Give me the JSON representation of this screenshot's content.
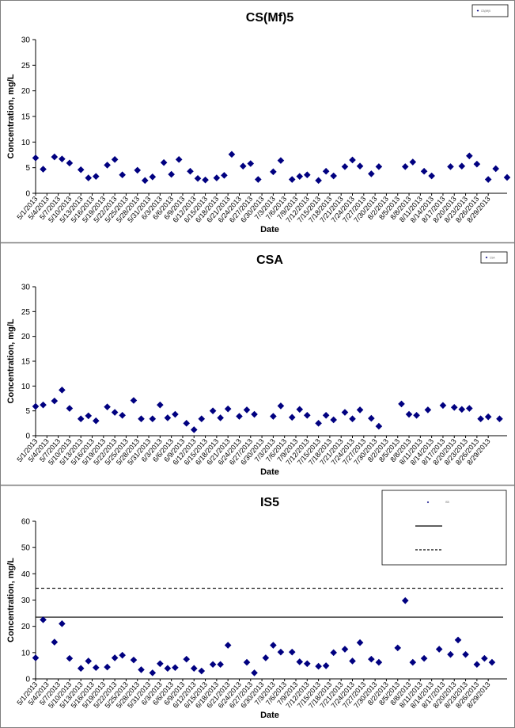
{
  "chart_data": [
    {
      "type": "scatter",
      "title": "CS(Mf)5",
      "xlabel": "Date",
      "ylabel": "Concentration, mg/L",
      "ylim": [
        0,
        30
      ],
      "yticks": [
        0,
        5,
        10,
        15,
        20,
        25,
        30
      ],
      "legend": {
        "position": "top-right",
        "entries": [
          "CS(Mf)5"
        ]
      },
      "x_tick_labels": [
        "5/1/2013",
        "5/4/2013",
        "5/7/2013",
        "5/10/2013",
        "5/13/2013",
        "5/16/2013",
        "5/19/2013",
        "5/22/2013",
        "5/25/2013",
        "5/28/2013",
        "5/31/2013",
        "6/3/2013",
        "6/6/2013",
        "6/9/2013",
        "6/12/2013",
        "6/15/2013",
        "6/18/2013",
        "6/21/2013",
        "6/24/2013",
        "6/27/2013",
        "6/30/2013",
        "7/3/2013",
        "7/6/2013",
        "7/9/2013",
        "7/12/2013",
        "7/15/2013",
        "7/18/2013",
        "7/21/2013",
        "7/24/2013",
        "7/27/2013",
        "7/30/2013",
        "8/2/2013",
        "8/5/2013",
        "8/8/2013",
        "8/11/2013",
        "8/14/2013",
        "8/17/2013",
        "8/20/2013",
        "8/23/2013",
        "8/26/2013",
        "8/29/2013"
      ],
      "series": [
        {
          "name": "CS(Mf)5",
          "points": [
            [
              "5/1/2013",
              6.9
            ],
            [
              "5/3/2013",
              4.7
            ],
            [
              "5/6/2013",
              7.1
            ],
            [
              "5/8/2013",
              6.7
            ],
            [
              "5/10/2013",
              5.9
            ],
            [
              "5/13/2013",
              4.6
            ],
            [
              "5/15/2013",
              3.0
            ],
            [
              "5/17/2013",
              3.3
            ],
            [
              "5/20/2013",
              5.5
            ],
            [
              "5/22/2013",
              6.6
            ],
            [
              "5/24/2013",
              3.6
            ],
            [
              "5/28/2013",
              4.5
            ],
            [
              "5/30/2013",
              2.5
            ],
            [
              "6/1/2013",
              3.2
            ],
            [
              "6/4/2013",
              6.0
            ],
            [
              "6/6/2013",
              3.7
            ],
            [
              "6/8/2013",
              6.6
            ],
            [
              "6/11/2013",
              4.3
            ],
            [
              "6/13/2013",
              2.9
            ],
            [
              "6/15/2013",
              2.6
            ],
            [
              "6/18/2013",
              3.0
            ],
            [
              "6/20/2013",
              3.5
            ],
            [
              "6/22/2013",
              7.6
            ],
            [
              "6/25/2013",
              5.3
            ],
            [
              "6/27/2013",
              5.8
            ],
            [
              "6/29/2013",
              2.7
            ],
            [
              "7/3/2013",
              4.2
            ],
            [
              "7/5/2013",
              6.4
            ],
            [
              "7/8/2013",
              2.7
            ],
            [
              "7/10/2013",
              3.3
            ],
            [
              "7/12/2013",
              3.6
            ],
            [
              "7/15/2013",
              2.5
            ],
            [
              "7/17/2013",
              4.3
            ],
            [
              "7/19/2013",
              3.4
            ],
            [
              "7/22/2013",
              5.2
            ],
            [
              "7/24/2013",
              6.5
            ],
            [
              "7/26/2013",
              5.3
            ],
            [
              "7/29/2013",
              3.8
            ],
            [
              "7/31/2013",
              5.2
            ],
            [
              "8/7/2013",
              5.2
            ],
            [
              "8/9/2013",
              6.1
            ],
            [
              "8/12/2013",
              4.3
            ],
            [
              "8/14/2013",
              3.4
            ],
            [
              "8/19/2013",
              5.2
            ],
            [
              "8/22/2013",
              5.3
            ],
            [
              "8/24/2013",
              7.3
            ],
            [
              "8/26/2013",
              5.7
            ],
            [
              "8/29/2013",
              2.7
            ],
            [
              "8/31/2013",
              4.8
            ],
            [
              "9/3/2013",
              3.1
            ]
          ]
        }
      ]
    },
    {
      "type": "scatter",
      "title": "CSA",
      "xlabel": "Date",
      "ylabel": "Concentration, mg/L",
      "ylim": [
        0,
        30
      ],
      "yticks": [
        0,
        5,
        10,
        15,
        20,
        25,
        30
      ],
      "legend": {
        "position": "top-right",
        "entries": [
          "CSA"
        ]
      },
      "x_tick_labels": [
        "5/1/2013",
        "5/4/2013",
        "5/7/2013",
        "5/10/2013",
        "5/13/2013",
        "5/16/2013",
        "5/19/2013",
        "5/22/2013",
        "5/25/2013",
        "5/28/2013",
        "5/31/2013",
        "6/3/2013",
        "6/6/2013",
        "6/9/2013",
        "6/12/2013",
        "6/15/2013",
        "6/18/2013",
        "6/21/2013",
        "6/24/2013",
        "6/27/2013",
        "6/30/2013",
        "7/3/2013",
        "7/6/2013",
        "7/9/2013",
        "7/12/2013",
        "7/15/2013",
        "7/18/2013",
        "7/21/2013",
        "7/24/2013",
        "7/27/2013",
        "7/30/2013",
        "8/2/2013",
        "8/5/2013",
        "8/8/2013",
        "8/11/2013",
        "8/14/2013",
        "8/17/2013",
        "8/20/2013",
        "8/23/2013",
        "8/26/2013",
        "8/29/2013"
      ],
      "series": [
        {
          "name": "CSA",
          "points": [
            [
              "5/1/2013",
              5.9
            ],
            [
              "5/3/2013",
              6.2
            ],
            [
              "5/6/2013",
              7.0
            ],
            [
              "5/8/2013",
              9.2
            ],
            [
              "5/10/2013",
              5.5
            ],
            [
              "5/13/2013",
              3.4
            ],
            [
              "5/15/2013",
              4.0
            ],
            [
              "5/17/2013",
              3.0
            ],
            [
              "5/20/2013",
              5.8
            ],
            [
              "5/22/2013",
              4.7
            ],
            [
              "5/24/2013",
              4.1
            ],
            [
              "5/27/2013",
              7.1
            ],
            [
              "5/29/2013",
              3.4
            ],
            [
              "6/1/2013",
              3.4
            ],
            [
              "6/3/2013",
              6.2
            ],
            [
              "6/5/2013",
              3.6
            ],
            [
              "6/7/2013",
              4.3
            ],
            [
              "6/10/2013",
              2.5
            ],
            [
              "6/12/2013",
              1.2
            ],
            [
              "6/14/2013",
              3.4
            ],
            [
              "6/17/2013",
              5.0
            ],
            [
              "6/19/2013",
              3.6
            ],
            [
              "6/21/2013",
              5.4
            ],
            [
              "6/24/2013",
              3.9
            ],
            [
              "6/26/2013",
              5.2
            ],
            [
              "6/28/2013",
              4.3
            ],
            [
              "7/3/2013",
              3.9
            ],
            [
              "7/5/2013",
              6.0
            ],
            [
              "7/8/2013",
              3.7
            ],
            [
              "7/10/2013",
              5.3
            ],
            [
              "7/12/2013",
              4.1
            ],
            [
              "7/15/2013",
              2.5
            ],
            [
              "7/17/2013",
              4.1
            ],
            [
              "7/19/2013",
              3.2
            ],
            [
              "7/22/2013",
              4.7
            ],
            [
              "7/24/2013",
              3.4
            ],
            [
              "7/26/2013",
              5.2
            ],
            [
              "7/29/2013",
              3.5
            ],
            [
              "7/31/2013",
              1.9
            ],
            [
              "8/6/2013",
              6.4
            ],
            [
              "8/8/2013",
              4.3
            ],
            [
              "8/10/2013",
              4.1
            ],
            [
              "8/13/2013",
              5.2
            ],
            [
              "8/17/2013",
              6.1
            ],
            [
              "8/20/2013",
              5.7
            ],
            [
              "8/22/2013",
              5.3
            ],
            [
              "8/24/2013",
              5.5
            ],
            [
              "8/27/2013",
              3.4
            ],
            [
              "8/29/2013",
              3.8
            ],
            [
              "9/1/2013",
              3.4
            ]
          ]
        }
      ]
    },
    {
      "type": "scatter",
      "title": "IS5",
      "xlabel": "Date",
      "ylabel": "Concentration, mg/L",
      "ylim": [
        0,
        60
      ],
      "yticks": [
        0,
        10,
        20,
        30,
        40,
        50,
        60
      ],
      "legend": {
        "position": "top-right",
        "entries": [
          "IS5",
          "",
          ""
        ]
      },
      "reference_lines": [
        {
          "style": "solid",
          "value": 23.5
        },
        {
          "style": "dashed",
          "value": 34.5
        }
      ],
      "x_tick_labels": [
        "5/1/2013",
        "5/4/2013",
        "5/7/2013",
        "5/10/2013",
        "5/13/2013",
        "5/16/2013",
        "5/19/2013",
        "5/22/2013",
        "5/25/2013",
        "5/28/2013",
        "5/31/2013",
        "6/3/2013",
        "6/6/2013",
        "6/9/2013",
        "6/12/2013",
        "6/15/2013",
        "6/18/2013",
        "6/21/2013",
        "6/24/2013",
        "6/27/2013",
        "6/30/2013",
        "7/3/2013",
        "7/6/2013",
        "7/9/2013",
        "7/12/2013",
        "7/15/2013",
        "7/18/2013",
        "7/21/2013",
        "7/24/2013",
        "7/27/2013",
        "7/30/2013",
        "8/2/2013",
        "8/5/2013",
        "8/8/2013",
        "8/11/2013",
        "8/14/2013",
        "8/17/2013",
        "8/20/2013",
        "8/23/2013",
        "8/26/2013",
        "8/29/2013"
      ],
      "series": [
        {
          "name": "IS5",
          "points": [
            [
              "5/1/2013",
              8.0
            ],
            [
              "5/3/2013",
              22.5
            ],
            [
              "5/6/2013",
              14.0
            ],
            [
              "5/8/2013",
              21.0
            ],
            [
              "5/10/2013",
              7.8
            ],
            [
              "5/13/2013",
              4.0
            ],
            [
              "5/15/2013",
              6.8
            ],
            [
              "5/17/2013",
              4.3
            ],
            [
              "5/20/2013",
              4.5
            ],
            [
              "5/22/2013",
              8.0
            ],
            [
              "5/24/2013",
              9.0
            ],
            [
              "5/27/2013",
              7.2
            ],
            [
              "5/29/2013",
              3.5
            ],
            [
              "6/1/2013",
              2.3
            ],
            [
              "6/3/2013",
              5.8
            ],
            [
              "6/5/2013",
              4.0
            ],
            [
              "6/7/2013",
              4.3
            ],
            [
              "6/10/2013",
              7.5
            ],
            [
              "6/12/2013",
              4.0
            ],
            [
              "6/14/2013",
              3.0
            ],
            [
              "6/17/2013",
              5.5
            ],
            [
              "6/19/2013",
              5.5
            ],
            [
              "6/21/2013",
              12.8
            ],
            [
              "6/26/2013",
              6.3
            ],
            [
              "6/28/2013",
              2.3
            ],
            [
              "7/1/2013",
              8.0
            ],
            [
              "7/3/2013",
              12.8
            ],
            [
              "7/5/2013",
              10.2
            ],
            [
              "7/8/2013",
              10.2
            ],
            [
              "7/10/2013",
              6.5
            ],
            [
              "7/12/2013",
              5.8
            ],
            [
              "7/15/2013",
              4.8
            ],
            [
              "7/17/2013",
              5.0
            ],
            [
              "7/19/2013",
              10.0
            ],
            [
              "7/22/2013",
              11.3
            ],
            [
              "7/24/2013",
              6.8
            ],
            [
              "7/26/2013",
              13.8
            ],
            [
              "7/29/2013",
              7.5
            ],
            [
              "7/31/2013",
              6.3
            ],
            [
              "8/5/2013",
              11.8
            ],
            [
              "8/7/2013",
              29.8
            ],
            [
              "8/9/2013",
              6.3
            ],
            [
              "8/12/2013",
              7.8
            ],
            [
              "8/16/2013",
              11.3
            ],
            [
              "8/19/2013",
              9.3
            ],
            [
              "8/21/2013",
              14.8
            ],
            [
              "8/23/2013",
              9.3
            ],
            [
              "8/26/2013",
              5.5
            ],
            [
              "8/28/2013",
              7.8
            ],
            [
              "8/30/2013",
              6.3
            ]
          ]
        }
      ]
    }
  ]
}
